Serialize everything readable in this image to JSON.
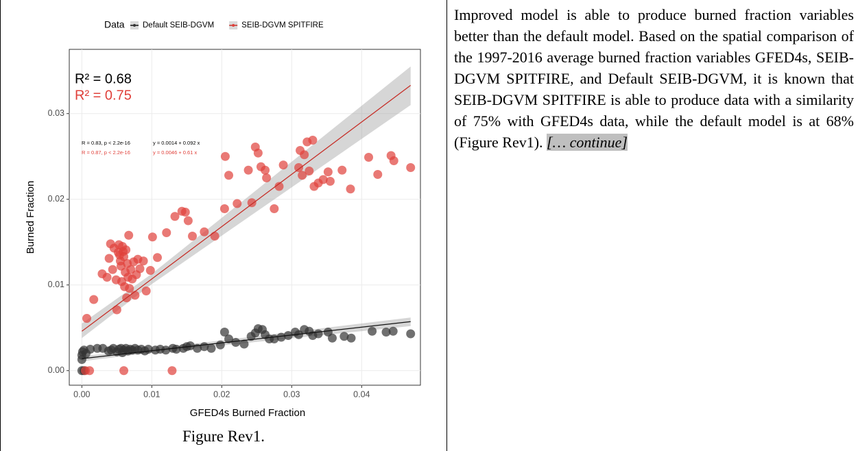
{
  "chart_data": {
    "type": "scatter",
    "legend_title": "Data",
    "x_label": "GFED4s Burned Fraction",
    "y_label": "Burned Fraction",
    "xlim": [
      -0.0018,
      0.0484
    ],
    "ylim": [
      -0.0017,
      0.0375
    ],
    "xticks": [
      {
        "value": 0,
        "label": "0.00"
      },
      {
        "value": 0.01,
        "label": "0.01"
      },
      {
        "value": 0.02,
        "label": "0.02"
      },
      {
        "value": 0.03,
        "label": "0.03"
      },
      {
        "value": 0.04,
        "label": "0.04"
      }
    ],
    "yticks": [
      {
        "value": 0,
        "label": "0.00"
      },
      {
        "value": 0.01,
        "label": "0.01"
      },
      {
        "value": 0.02,
        "label": "0.02"
      },
      {
        "value": 0.03,
        "label": "0.03"
      }
    ],
    "grid": true,
    "legend": "top",
    "series": [
      {
        "name": "Default SEIB-DGVM",
        "color": "#333333",
        "line_color": "#111111",
        "r2_label": "R² = 0.68",
        "stat_label": "R = 0.83, p < 2.2e-16",
        "eq_label": "y = 0.0014 + 0.092 x",
        "x": [
          0,
          0.0003,
          0,
          0,
          0.0001,
          0.0003,
          0.0006,
          0.0012,
          0.0022,
          0.003,
          0.0038,
          0.0042,
          0.0045,
          0.005,
          0.0053,
          0.0056,
          0.0058,
          0.006,
          0.0063,
          0.0066,
          0.0069,
          0.0072,
          0.0076,
          0.008,
          0.0085,
          0.009,
          0.0095,
          0.0105,
          0.0112,
          0.012,
          0.013,
          0.0135,
          0.0145,
          0.015,
          0.0155,
          0.0165,
          0.0175,
          0.0185,
          0.0198,
          0.0204,
          0.021,
          0.022,
          0.0232,
          0.0242,
          0.0248,
          0.0252,
          0.0258,
          0.0262,
          0.0268,
          0.0275,
          0.0285,
          0.0295,
          0.0305,
          0.031,
          0.0318,
          0.0325,
          0.033,
          0.0338,
          0.0352,
          0.0358,
          0.0375,
          0.0385,
          0.0415,
          0.0435,
          0.0445,
          0.047
        ],
        "values": [
          0,
          0,
          0.0013,
          0.0018,
          0.0022,
          0.0024,
          0.002,
          0.0025,
          0.0026,
          0.0026,
          0.0023,
          0.0024,
          0.0026,
          0.0022,
          0.0025,
          0.0026,
          0.0021,
          0.0024,
          0.0026,
          0.0023,
          0.0025,
          0.0024,
          0.0026,
          0.0024,
          0.0025,
          0.0023,
          0.0025,
          0.0024,
          0.0025,
          0.0024,
          0.0026,
          0.0025,
          0.0026,
          0.0028,
          0.0029,
          0.0026,
          0.0028,
          0.0026,
          0.003,
          0.0045,
          0.0037,
          0.0033,
          0.0031,
          0.004,
          0.0044,
          0.0049,
          0.0048,
          0.0042,
          0.0037,
          0.0037,
          0.0039,
          0.0041,
          0.0045,
          0.0042,
          0.0048,
          0.0046,
          0.0041,
          0.0043,
          0.0045,
          0.0038,
          0.004,
          0.0038,
          0.0046,
          0.0045,
          0.0046,
          0.0043
        ],
        "fit": {
          "x": [
            0,
            0.01,
            0.047
          ],
          "y": [
            0.0014,
            0.00232,
            0.00572
          ],
          "lower": [
            0.0011,
            0.0021,
            0.0052
          ],
          "upper": [
            0.0017,
            0.00254,
            0.0062
          ]
        }
      },
      {
        "name": "SEIB-DGVM SPITFIRE",
        "color": "#e0403a",
        "line_color": "#c62f28",
        "r2_label": "R² = 0.75",
        "stat_label": "R = 0.87, p < 2.2e-16",
        "eq_label": "y = 0.0046 + 0.61 x",
        "x": [
          0.0007,
          0.0017,
          0.0029,
          0.0036,
          0.0039,
          0.0041,
          0.0044,
          0.0046,
          0.0049,
          0.005,
          0.0052,
          0.0053,
          0.0054,
          0.0055,
          0.0056,
          0.0057,
          0.0058,
          0.0059,
          0.006,
          0.0061,
          0.0062,
          0.0063,
          0.0064,
          0.0065,
          0.0066,
          0.0067,
          0.0068,
          0.007,
          0.0072,
          0.0074,
          0.0076,
          0.0078,
          0.008,
          0.0083,
          0.0088,
          0.0092,
          0.0098,
          0.0101,
          0.0108,
          0.0121,
          0.0133,
          0.0143,
          0.0148,
          0.0152,
          0.0158,
          0.0175,
          0.019,
          0.0204,
          0.0205,
          0.021,
          0.0222,
          0.0238,
          0.0243,
          0.0248,
          0.0252,
          0.0256,
          0.0262,
          0.0264,
          0.0275,
          0.0282,
          0.0288,
          0.031,
          0.0312,
          0.0315,
          0.0318,
          0.0322,
          0.0325,
          0.033,
          0.0332,
          0.0338,
          0.0345,
          0.0352,
          0.0355,
          0.0372,
          0.0384,
          0.041,
          0.0423,
          0.0442,
          0.0446,
          0.047,
          0.0005,
          0.0011,
          0.006,
          0.0129
        ],
        "values": [
          0.0061,
          0.0083,
          0.0113,
          0.0109,
          0.0131,
          0.0148,
          0.0118,
          0.0143,
          0.0106,
          0.0071,
          0.0138,
          0.0147,
          0.0135,
          0.0128,
          0.0122,
          0.0104,
          0.0145,
          0.0139,
          0.0133,
          0.0098,
          0.0115,
          0.0141,
          0.0085,
          0.0125,
          0.0109,
          0.0158,
          0.0096,
          0.0118,
          0.0107,
          0.0127,
          0.0088,
          0.0112,
          0.013,
          0.0119,
          0.0128,
          0.0093,
          0.0117,
          0.0156,
          0.0132,
          0.0161,
          0.018,
          0.0186,
          0.0185,
          0.0175,
          0.0157,
          0.0162,
          0.0157,
          0.0189,
          0.025,
          0.0228,
          0.0195,
          0.0234,
          0.0196,
          0.0261,
          0.0254,
          0.0238,
          0.0234,
          0.0225,
          0.0189,
          0.0215,
          0.024,
          0.0237,
          0.0257,
          0.0228,
          0.0252,
          0.0267,
          0.0233,
          0.0269,
          0.0215,
          0.0219,
          0.0223,
          0.0232,
          0.0221,
          0.0234,
          0.0212,
          0.0249,
          0.0229,
          0.0251,
          0.0245,
          0.0237,
          0,
          0,
          0,
          0
        ],
        "fit": {
          "x": [
            0,
            0.01,
            0.047
          ],
          "y": [
            0.0046,
            0.0107,
            0.0333
          ],
          "lower": [
            0.0038,
            0.0101,
            0.031
          ],
          "upper": [
            0.0055,
            0.0113,
            0.0355
          ]
        }
      }
    ]
  },
  "caption": "Figure Rev1.",
  "paragraph": {
    "text": "Improved model is able to produce burned fraction variables better than the default model. Based on the spatial comparison of the 1997-2016 average burned fraction variables GFED4s, SEIB-DGVM SPITFIRE, and Default SEIB-DGVM, it is known that SEIB-DGVM SPITFIRE is able to produce data with a similarity of 75% with GFED4s data, while the default model is at 68% (Figure Rev1).",
    "highlight": "[… continue]"
  }
}
